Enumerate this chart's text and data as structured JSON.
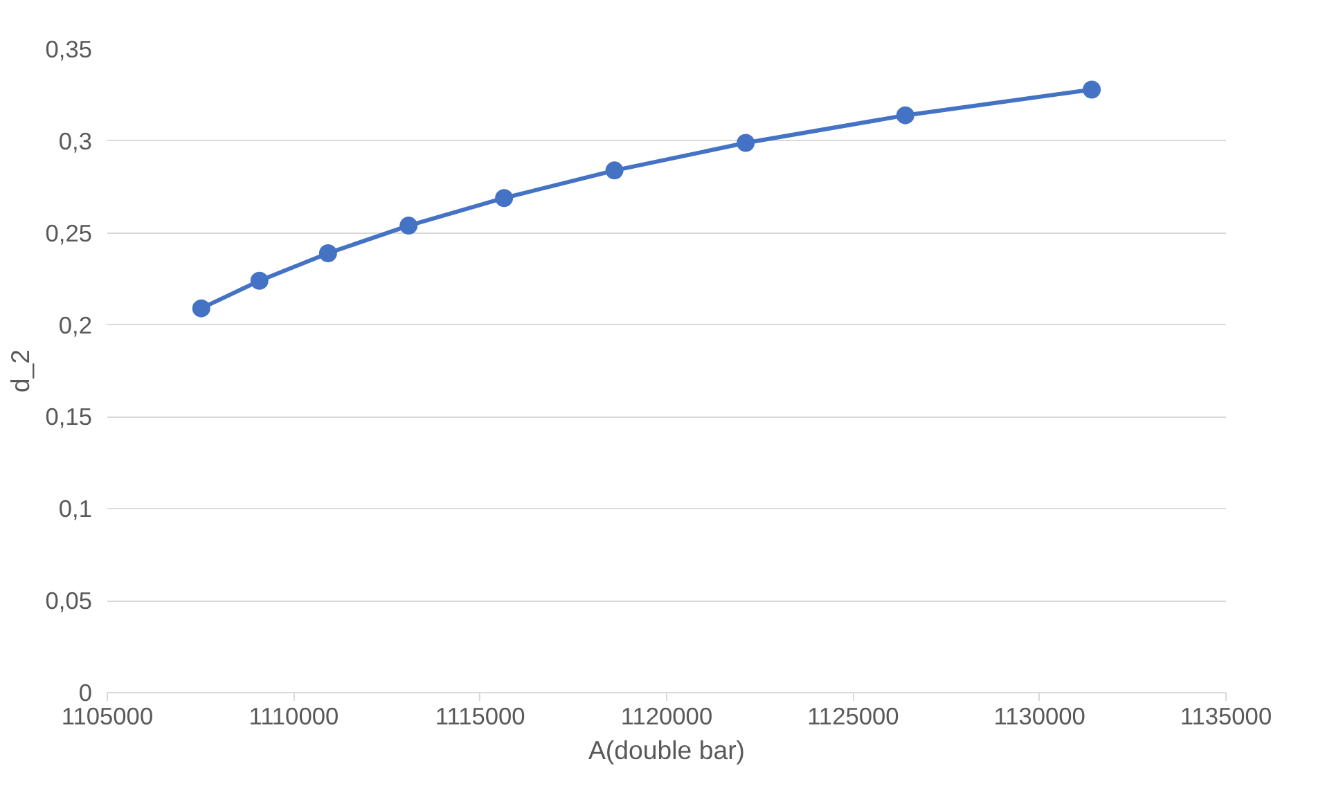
{
  "chart_data": {
    "type": "line",
    "xlabel": "A(double bar)",
    "ylabel": "d_2",
    "x": [
      1107520,
      1109080,
      1110920,
      1113080,
      1115640,
      1118600,
      1122120,
      1126400,
      1131400
    ],
    "series": [
      {
        "color": "#4472c4",
        "values": [
          0.209,
          0.224,
          0.239,
          0.254,
          0.269,
          0.284,
          0.299,
          0.314,
          0.328
        ]
      }
    ],
    "xlim": [
      1105000,
      1135000
    ],
    "xticks": [
      1105000,
      1110000,
      1115000,
      1120000,
      1125000,
      1130000,
      1135000
    ],
    "ylim": [
      0,
      0.35
    ],
    "yticks": [
      {
        "value": 0,
        "label": "0"
      },
      {
        "value": 0.05,
        "label": "0,05"
      },
      {
        "value": 0.1,
        "label": "0,1"
      },
      {
        "value": 0.15,
        "label": "0,15"
      },
      {
        "value": 0.2,
        "label": "0,2"
      },
      {
        "value": 0.25,
        "label": "0,25"
      },
      {
        "value": 0.3,
        "label": "0,3"
      },
      {
        "value": 0.35,
        "label": "0,35"
      }
    ],
    "grid": "y",
    "marker": "circle",
    "line_style": "solid"
  }
}
